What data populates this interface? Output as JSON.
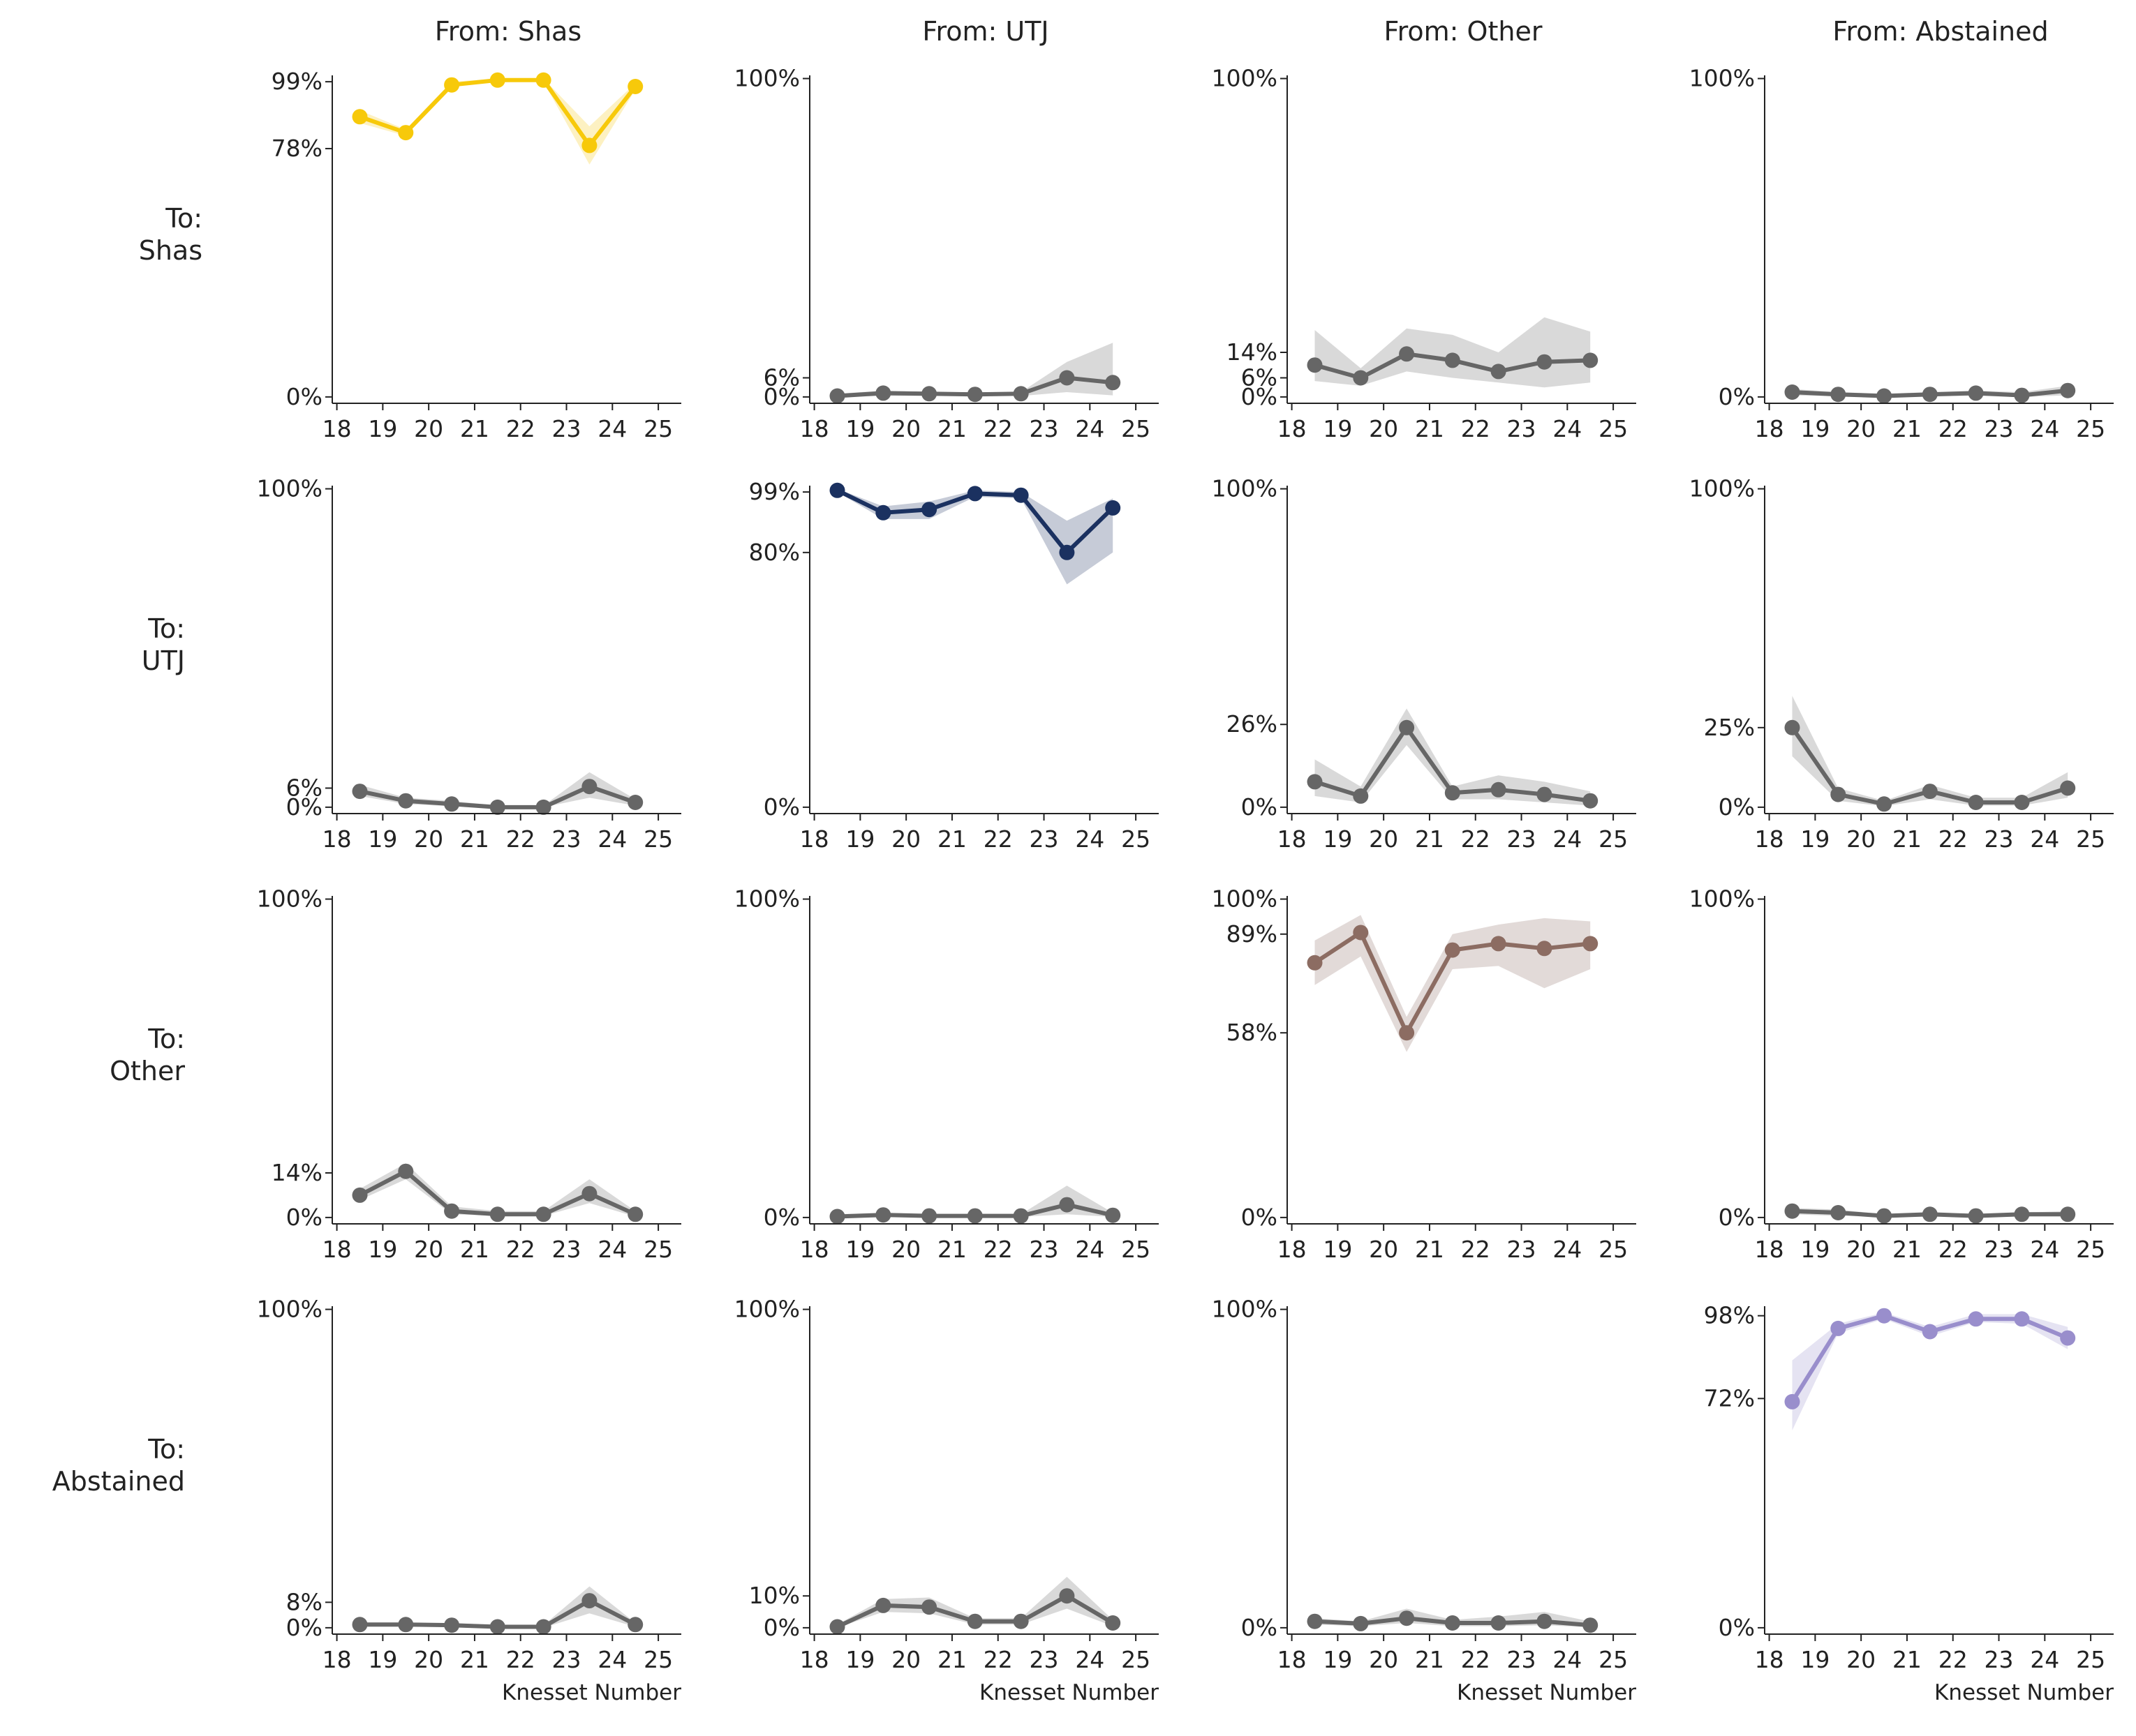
{
  "chart_data": {
    "type": "line",
    "xlabel": "Knesset Number",
    "x": [
      18.5,
      19.5,
      20.5,
      21.5,
      22.5,
      23.5,
      24.5
    ],
    "xticks": [
      "18",
      "19",
      "20",
      "21",
      "22",
      "23",
      "24",
      "25"
    ],
    "xlim": [
      17.9,
      25.5
    ],
    "ylim_pct": [
      -2,
      101
    ],
    "col_titles": [
      "From: Shas",
      "From: UTJ",
      "From: Other",
      "From: Abstained"
    ],
    "row_labels": [
      [
        "To:",
        "Shas"
      ],
      [
        "To:",
        "UTJ"
      ],
      [
        "To:",
        "Other"
      ],
      [
        "To:",
        "Abstained"
      ]
    ],
    "panels": [
      {
        "row": 0,
        "col": 0,
        "color": "#F7C90A",
        "yticks": [
          0,
          78,
          99
        ],
        "values": [
          88,
          83,
          98,
          99.5,
          99.5,
          79,
          97.5
        ],
        "lower": [
          86,
          82,
          97.5,
          99,
          99,
          73,
          96.5
        ],
        "upper": [
          90,
          84,
          99,
          100,
          100,
          85,
          98.5
        ]
      },
      {
        "row": 0,
        "col": 1,
        "color": "#666666",
        "yticks": [
          0,
          6,
          100
        ],
        "values": [
          0.3,
          1.2,
          1,
          0.8,
          1,
          6,
          4.5
        ],
        "lower": [
          0,
          0.3,
          0.3,
          0.3,
          0.3,
          1.5,
          0.5
        ],
        "upper": [
          1,
          2,
          1.5,
          1.5,
          1.5,
          11,
          17
        ]
      },
      {
        "row": 0,
        "col": 2,
        "color": "#666666",
        "yticks": [
          0,
          6,
          14,
          100
        ],
        "values": [
          10,
          6,
          13.5,
          11.5,
          8,
          11,
          11.5
        ],
        "lower": [
          5,
          3.5,
          8,
          6,
          4.5,
          3,
          4.5
        ],
        "upper": [
          21,
          9,
          21.5,
          19.5,
          14,
          25,
          20.5
        ]
      },
      {
        "row": 0,
        "col": 3,
        "color": "#666666",
        "yticks": [
          0,
          100
        ],
        "values": [
          1.5,
          0.8,
          0.3,
          0.8,
          1.2,
          0.5,
          2
        ],
        "lower": [
          0.5,
          0.2,
          0,
          0.2,
          0.3,
          0,
          0.5
        ],
        "upper": [
          2.5,
          1.5,
          1,
          1.5,
          2,
          1.5,
          3.5
        ]
      },
      {
        "row": 1,
        "col": 0,
        "color": "#666666",
        "yticks": [
          0,
          6,
          100
        ],
        "values": [
          5,
          2,
          1,
          0,
          0,
          6.5,
          1.5
        ],
        "lower": [
          3.5,
          1,
          0.3,
          0,
          0,
          3,
          0.5
        ],
        "upper": [
          7,
          3,
          2,
          0.5,
          0.5,
          11,
          2.5
        ]
      },
      {
        "row": 1,
        "col": 1,
        "color": "#1B3160",
        "yticks": [
          0,
          80,
          99
        ],
        "values": [
          99.5,
          92.5,
          93.5,
          98.5,
          98,
          80,
          94
        ],
        "lower": [
          99,
          90.5,
          90.5,
          97.5,
          97,
          70,
          80
        ],
        "upper": [
          100,
          94.5,
          96,
          99.5,
          99,
          90,
          97
        ]
      },
      {
        "row": 1,
        "col": 2,
        "color": "#666666",
        "yticks": [
          0,
          26,
          100
        ],
        "values": [
          8,
          3.5,
          25,
          4.5,
          5.5,
          4,
          2
        ],
        "lower": [
          3.5,
          1.5,
          19.5,
          2.5,
          2.5,
          1.5,
          0.5
        ],
        "upper": [
          15,
          6.5,
          31,
          6.5,
          10,
          8,
          5
        ]
      },
      {
        "row": 1,
        "col": 3,
        "color": "#666666",
        "yticks": [
          0,
          25,
          100
        ],
        "values": [
          25,
          4,
          1,
          5,
          1.5,
          1.5,
          6
        ],
        "lower": [
          16,
          2,
          0.3,
          2.5,
          0.5,
          0.5,
          3
        ],
        "upper": [
          35,
          6,
          2,
          7,
          3,
          3,
          11
        ]
      },
      {
        "row": 2,
        "col": 0,
        "color": "#666666",
        "yticks": [
          0,
          14,
          100
        ],
        "values": [
          7,
          14.5,
          2,
          1,
          1,
          7.5,
          1
        ],
        "lower": [
          5.5,
          12,
          1,
          0.5,
          0.5,
          4.5,
          0.3
        ],
        "upper": [
          9,
          17,
          3.5,
          2,
          2,
          12,
          2
        ]
      },
      {
        "row": 2,
        "col": 1,
        "color": "#666666",
        "yticks": [
          0,
          100
        ],
        "values": [
          0.3,
          0.8,
          0.5,
          0.5,
          0.5,
          4,
          0.7
        ],
        "lower": [
          0,
          0.2,
          0.2,
          0.2,
          0.2,
          1,
          0.2
        ],
        "upper": [
          1,
          1.5,
          1,
          1,
          1,
          10,
          1.5
        ]
      },
      {
        "row": 2,
        "col": 2,
        "color": "#8C6C62",
        "yticks": [
          0,
          58,
          89,
          100
        ],
        "values": [
          80,
          89.5,
          58,
          84,
          86,
          84.5,
          86
        ],
        "lower": [
          73,
          82,
          52,
          78,
          79,
          72,
          78
        ],
        "upper": [
          87,
          95,
          63,
          89,
          92,
          94,
          93
        ]
      },
      {
        "row": 2,
        "col": 3,
        "color": "#666666",
        "yticks": [
          0,
          100
        ],
        "values": [
          2,
          1.5,
          0.5,
          1,
          0.5,
          1,
          1
        ],
        "lower": [
          1,
          0.5,
          0.2,
          0.3,
          0.2,
          0.3,
          0.3
        ],
        "upper": [
          3,
          2.5,
          1,
          1.5,
          1,
          1.5,
          2
        ]
      },
      {
        "row": 3,
        "col": 0,
        "color": "#666666",
        "yticks": [
          0,
          8,
          100
        ],
        "values": [
          1,
          1,
          0.8,
          0.3,
          0.3,
          8.5,
          1
        ],
        "lower": [
          0.3,
          0.3,
          0.3,
          0,
          0,
          4.5,
          0.3
        ],
        "upper": [
          1.5,
          1.5,
          1.5,
          0.8,
          0.8,
          13,
          1.5
        ]
      },
      {
        "row": 3,
        "col": 1,
        "color": "#666666",
        "yticks": [
          0,
          10,
          100
        ],
        "values": [
          0.3,
          7,
          6.5,
          2,
          2,
          10,
          1.5
        ],
        "lower": [
          0,
          5,
          4.5,
          1,
          1,
          6,
          0.5
        ],
        "upper": [
          1,
          9,
          9.5,
          3,
          3,
          16,
          2.5
        ]
      },
      {
        "row": 3,
        "col": 2,
        "color": "#666666",
        "yticks": [
          0,
          100
        ],
        "values": [
          2,
          1.3,
          3,
          1.5,
          1.5,
          2,
          0.8
        ],
        "lower": [
          1,
          0.5,
          1.5,
          0.5,
          0.5,
          0.8,
          0.2
        ],
        "upper": [
          3,
          2,
          6,
          2.5,
          3.5,
          5,
          2
        ]
      },
      {
        "row": 3,
        "col": 3,
        "color": "#998ECC",
        "yticks": [
          0,
          72,
          98
        ],
        "values": [
          71,
          94,
          98,
          93,
          97,
          97,
          91
        ],
        "lower": [
          62,
          92.5,
          97,
          91.5,
          96,
          95.5,
          87.5
        ],
        "upper": [
          84,
          95.5,
          99,
          94.5,
          98.5,
          98.5,
          94.5
        ]
      }
    ]
  }
}
